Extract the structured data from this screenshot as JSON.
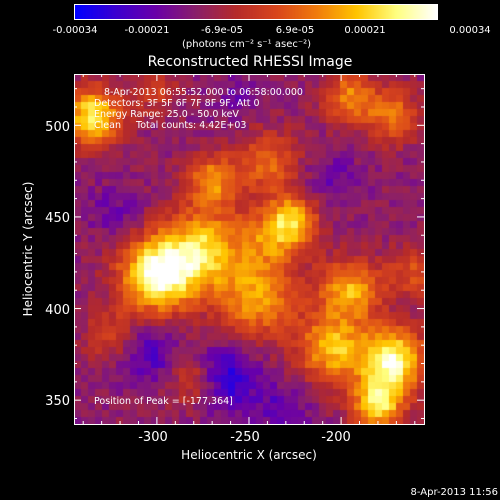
{
  "colorbar": {
    "ticks": [
      "-0.00034",
      "-0.00021",
      "-6.9e-05",
      "6.9e-05",
      "0.00021",
      "0.00034"
    ],
    "unit_label": "(photons cm⁻² s⁻¹ asec⁻²)",
    "range": [
      -0.00034,
      0.00034
    ],
    "colormap": [
      "#0000ff",
      "#3b00d0",
      "#6a00a8",
      "#8a1f6a",
      "#b52a2a",
      "#d8451c",
      "#f07a0c",
      "#ffc400",
      "#ffff80",
      "#ffffff"
    ]
  },
  "info": {
    "line1": "8-Apr-2013 06:55:52.000 to 06:58:00.000",
    "line2": "Detectors: 3F 5F 6F 7F 8F 9F, Att 0",
    "line3": "Energy Range: 25.0 - 50.0 keV",
    "line4": "Clean     Total counts: 4.42E+03"
  },
  "peak_label": "Position of Peak = [-177,364]",
  "timestamp": "8-Apr-2013 11:56",
  "chart_data": {
    "type": "heatmap",
    "title": "Reconstructed RHESSI Image",
    "xlabel": "Heliocentric X (arcsec)",
    "ylabel": "Heliocentric Y (arcsec)",
    "xlim": [
      -345,
      -155
    ],
    "ylim": [
      337,
      528
    ],
    "xticks": [
      -300,
      -250,
      -200
    ],
    "yticks": [
      350,
      400,
      450,
      500
    ],
    "grid": false,
    "peak": [
      -177,
      364
    ],
    "units": "photons cm-2 s-1 asec-2",
    "blobs": [
      {
        "x": -300,
        "y": 418,
        "amp": 1.0,
        "sigma": 14
      },
      {
        "x": -275,
        "y": 432,
        "amp": 0.75,
        "sigma": 16
      },
      {
        "x": -245,
        "y": 405,
        "amp": 0.6,
        "sigma": 15
      },
      {
        "x": -235,
        "y": 440,
        "amp": 0.55,
        "sigma": 12
      },
      {
        "x": -270,
        "y": 470,
        "amp": 0.55,
        "sigma": 10
      },
      {
        "x": -240,
        "y": 480,
        "amp": 0.45,
        "sigma": 12
      },
      {
        "x": -195,
        "y": 515,
        "amp": 0.55,
        "sigma": 10
      },
      {
        "x": -172,
        "y": 505,
        "amp": 0.5,
        "sigma": 10
      },
      {
        "x": -335,
        "y": 505,
        "amp": 0.85,
        "sigma": 11
      },
      {
        "x": -195,
        "y": 410,
        "amp": 0.65,
        "sigma": 12
      },
      {
        "x": -205,
        "y": 378,
        "amp": 0.7,
        "sigma": 13
      },
      {
        "x": -172,
        "y": 372,
        "amp": 0.95,
        "sigma": 12
      },
      {
        "x": -180,
        "y": 348,
        "amp": 0.8,
        "sigma": 10
      },
      {
        "x": -225,
        "y": 450,
        "amp": 0.5,
        "sigma": 9
      },
      {
        "x": -280,
        "y": 360,
        "amp": 0.35,
        "sigma": 9
      },
      {
        "x": -325,
        "y": 385,
        "amp": 0.3,
        "sigma": 10
      },
      {
        "x": -300,
        "y": 518,
        "amp": 0.3,
        "sigma": 8
      },
      {
        "x": -160,
        "y": 420,
        "amp": 0.35,
        "sigma": 10
      }
    ],
    "dips": [
      {
        "x": -262,
        "y": 362,
        "amp": 0.9,
        "sigma": 12
      },
      {
        "x": -305,
        "y": 375,
        "amp": 0.6,
        "sigma": 11
      },
      {
        "x": -232,
        "y": 345,
        "amp": 0.5,
        "sigma": 10
      },
      {
        "x": -205,
        "y": 470,
        "amp": 0.4,
        "sigma": 10
      },
      {
        "x": -322,
        "y": 452,
        "amp": 0.35,
        "sigma": 10
      },
      {
        "x": -255,
        "y": 515,
        "amp": 0.35,
        "sigma": 9
      }
    ]
  }
}
